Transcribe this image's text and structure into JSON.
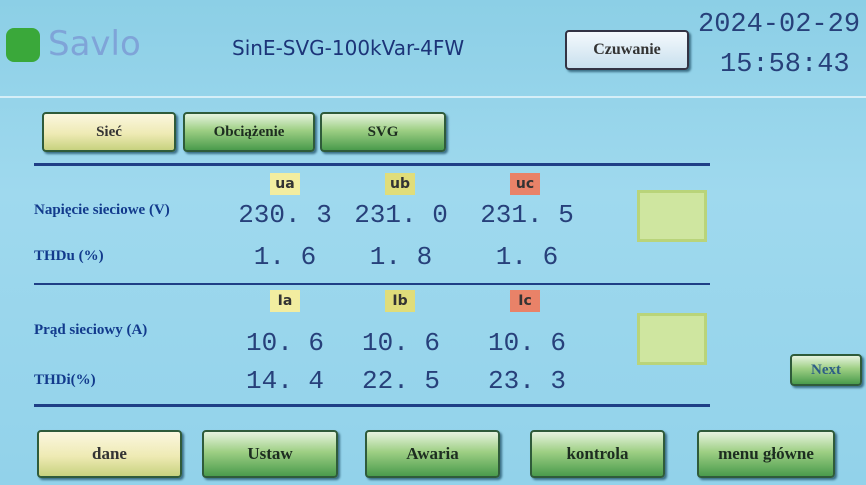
{
  "header": {
    "logo": "Savlo",
    "title": "SinE-SVG-100kVar-4FW",
    "status_button": "Czuwanie",
    "date": "2024-02-29",
    "time": "15:58:43"
  },
  "tabs": [
    "Sieć",
    "Obciążenie",
    "SVG"
  ],
  "voltage": {
    "columns": [
      "ua",
      "ub",
      "uc"
    ],
    "rows": [
      {
        "label": "Napięcie sieciowe (V)",
        "values": [
          "230. 3",
          "231. 0",
          "231. 5"
        ]
      },
      {
        "label": "THDu (%)",
        "values": [
          "1. 6",
          "1. 8",
          "1. 6"
        ]
      }
    ]
  },
  "current": {
    "columns": [
      "Ia",
      "Ib",
      "Ic"
    ],
    "rows": [
      {
        "label": "Prąd sieciowy (A)",
        "values": [
          "10. 6",
          "10. 6",
          "10. 6"
        ]
      },
      {
        "label": "THDi(%)",
        "values": [
          "14. 4",
          "22. 5",
          "23. 3"
        ]
      }
    ]
  },
  "next_button": "Next",
  "footer_buttons": [
    "dane",
    "Ustaw",
    "Awaria",
    "kontrola",
    "menu główne"
  ]
}
